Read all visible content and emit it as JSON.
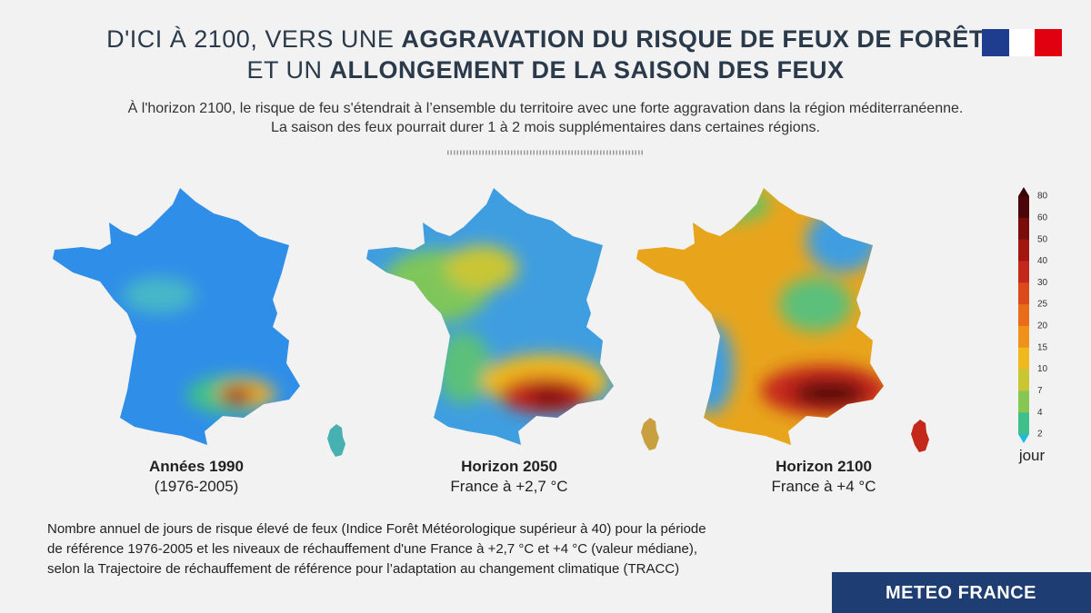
{
  "header": {
    "title_line1_plain": "D'ICI À 2100, VERS UNE ",
    "title_line1_bold": "AGGRAVATION DU RISQUE DE FEUX DE FORÊT",
    "title_line2_plain": "ET UN ",
    "title_line2_bold": "ALLONGEMENT DE LA SAISON DES FEUX",
    "subtitle": [
      "À l'horizon 2100, le risque de feu s'étendrait à l’ensemble du territoire avec une forte aggravation dans la région méditerranéenne.",
      "La saison des feux pourrait durer 1 à 2 mois supplémentaires dans certaines régions."
    ]
  },
  "maps": [
    {
      "title": "Années 1990",
      "subtitle": "(1976-2005)"
    },
    {
      "title": "Horizon 2050",
      "subtitle": "France à +2,7 °C"
    },
    {
      "title": "Horizon 2100",
      "subtitle": "France à +4 °C"
    }
  ],
  "legend": {
    "ticks": [
      80,
      60,
      50,
      40,
      30,
      25,
      20,
      15,
      10,
      7,
      4,
      2
    ],
    "unit": "jour",
    "colors": [
      "#4a0608",
      "#7a0c0c",
      "#a3150f",
      "#c4281a",
      "#dc4a1c",
      "#e86c1a",
      "#f0921a",
      "#efb81c",
      "#c9c634",
      "#86c653",
      "#3fc08a"
    ]
  },
  "footnote": [
    "Nombre annuel de jours de risque élevé de feux (Indice Forêt Météorologique supérieur à 40) pour la période",
    "de référence 1976-2005 et les niveaux de réchauffement d'une France à +2,7 °C et +4 °C (valeur médiane),",
    "selon la Trajectoire de réchauffement de référence pour l’adaptation au changement climatique (TRACC)"
  ],
  "brand": "METEO FRANCE"
}
